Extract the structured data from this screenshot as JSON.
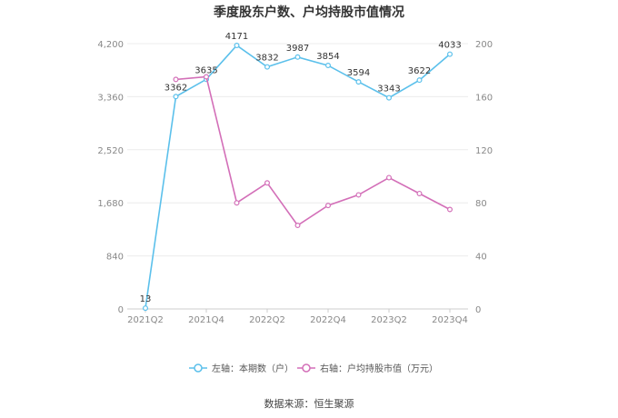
{
  "title": "季度股东户数、户均持股市值情况",
  "source": "数据来源：恒生聚源",
  "chart_data": {
    "type": "line",
    "categories": [
      "2021Q2",
      "2021Q3",
      "2021Q4",
      "2022Q1",
      "2022Q2",
      "2022Q3",
      "2022Q4",
      "2023Q1",
      "2023Q2",
      "2023Q3",
      "2023Q4"
    ],
    "x_tick_labels": [
      "2021Q2",
      "",
      "2021Q4",
      "",
      "2022Q2",
      "",
      "2022Q4",
      "",
      "2023Q2",
      "",
      "2023Q4"
    ],
    "left_axis": {
      "min": 0,
      "max": 4200,
      "ticks": [
        0,
        840,
        1680,
        2520,
        3360,
        4200
      ],
      "tick_labels": [
        "0",
        "840",
        "1,680",
        "2,520",
        "3,360",
        "4,200"
      ]
    },
    "right_axis": {
      "min": 0,
      "max": 200,
      "ticks": [
        0,
        40,
        80,
        120,
        160,
        200
      ],
      "tick_labels": [
        "0",
        "40",
        "80",
        "120",
        "160",
        "200"
      ]
    },
    "grid": true,
    "legend_position": "bottom",
    "series": [
      {
        "name": "左轴：本期数（户）",
        "axis": "left",
        "color": "#5bc0eb",
        "values": [
          13,
          3362,
          3635,
          4171,
          3832,
          3987,
          3854,
          3594,
          3343,
          3622,
          4033
        ],
        "labels": [
          "13",
          "3362",
          "3635",
          "4171",
          "3832",
          "3987",
          "3854",
          "3594",
          "3343",
          "3622",
          "4033"
        ]
      },
      {
        "name": "右轴：户均持股市值（万元）",
        "axis": "right",
        "color": "#d36fb8",
        "values": [
          null,
          173,
          175,
          80,
          95,
          63,
          78,
          86,
          99,
          87,
          75
        ]
      }
    ]
  }
}
